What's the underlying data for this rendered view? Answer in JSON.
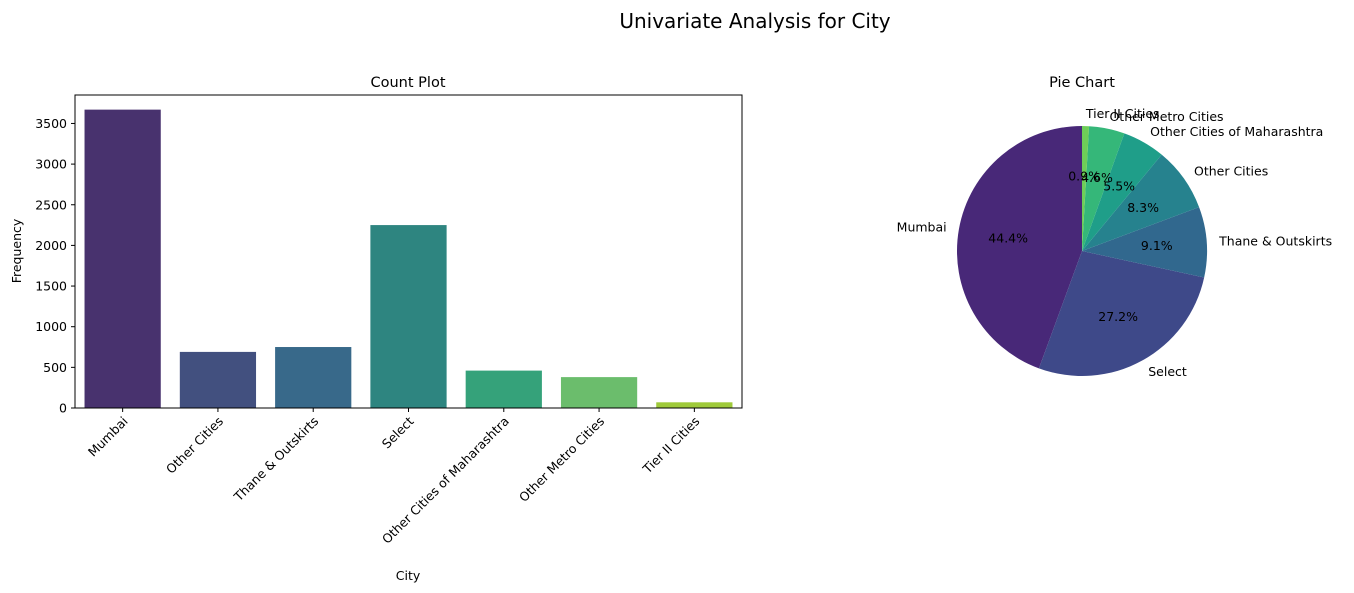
{
  "figure": {
    "title": "Univariate Analysis for City"
  },
  "chart_data": [
    {
      "type": "bar",
      "title": "Count Plot",
      "xlabel": "City",
      "ylabel": "Frequency",
      "ylim": [
        0,
        3850
      ],
      "yticks": [
        0,
        500,
        1000,
        1500,
        2000,
        2500,
        3000,
        3500
      ],
      "categories": [
        "Mumbai",
        "Other Cities",
        "Thane & Outskirts",
        "Select",
        "Other Cities of Maharashtra",
        "Other Metro Cities",
        "Tier II Cities"
      ],
      "values": [
        3670,
        690,
        750,
        2250,
        460,
        380,
        70
      ],
      "colors": [
        "#48326e",
        "#42507f",
        "#38698a",
        "#2e8580",
        "#35a27a",
        "#6bbd6c",
        "#9fca3a"
      ],
      "grid": false
    },
    {
      "type": "pie",
      "title": "Pie Chart",
      "start_angle": 90,
      "direction": "counterclockwise",
      "slices": [
        {
          "label": "Mumbai",
          "value": 44.4,
          "pct_label": "44.4%",
          "color": "#482878"
        },
        {
          "label": "Select",
          "value": 27.2,
          "pct_label": "27.2%",
          "color": "#3e4989"
        },
        {
          "label": "Thane & Outskirts",
          "value": 9.1,
          "pct_label": "9.1%",
          "color": "#31688e"
        },
        {
          "label": "Other Cities",
          "value": 8.3,
          "pct_label": "8.3%",
          "color": "#26828e"
        },
        {
          "label": "Other Cities of Maharashtra",
          "value": 5.5,
          "pct_label": "5.5%",
          "color": "#1f9e89"
        },
        {
          "label": "Other Metro Cities",
          "value": 4.6,
          "pct_label": "4.6%",
          "color": "#35b779"
        },
        {
          "label": "Tier II Cities",
          "value": 0.9,
          "pct_label": "0.9%",
          "color": "#6ece58"
        }
      ]
    }
  ]
}
